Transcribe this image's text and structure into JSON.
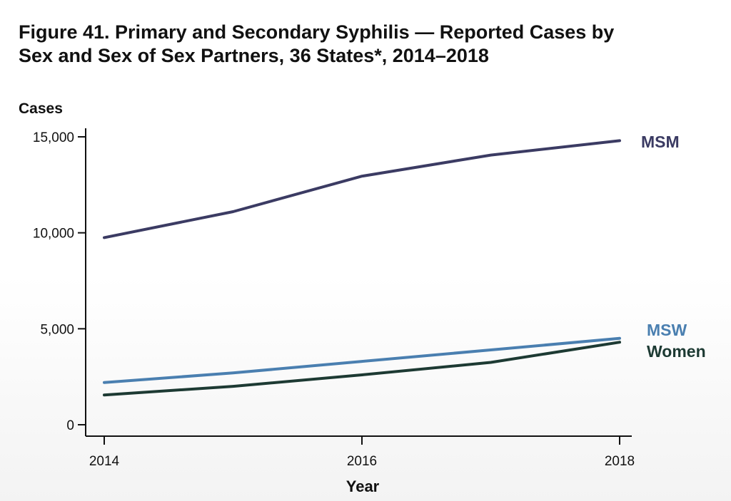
{
  "chart_data": {
    "type": "line",
    "title_line1": "Figure 41. Primary and Secondary Syphilis — Reported Cases by",
    "title_line2": "Sex and Sex of Sex Partners, 36 States*, 2014–2018",
    "ylabel": "Cases",
    "xlabel": "Year",
    "x": [
      2014,
      2015,
      2016,
      2017,
      2018
    ],
    "xticks": [
      2014,
      2016,
      2018
    ],
    "xlim": [
      2014,
      2018
    ],
    "ylim": [
      0,
      15000
    ],
    "yticks": [
      0,
      5000,
      10000,
      15000
    ],
    "ytick_labels": [
      "0",
      "5,000",
      "10,000",
      "15,000"
    ],
    "grid": false,
    "series": [
      {
        "name": "MSM",
        "color": "#3b3b63",
        "values": [
          9750,
          11100,
          12950,
          14050,
          14800
        ]
      },
      {
        "name": "MSW",
        "color": "#4a7fb0",
        "values": [
          2200,
          2700,
          3300,
          3900,
          4500
        ]
      },
      {
        "name": "Women",
        "color": "#1d3a33",
        "values": [
          1550,
          2000,
          2600,
          3250,
          4300
        ]
      }
    ]
  }
}
